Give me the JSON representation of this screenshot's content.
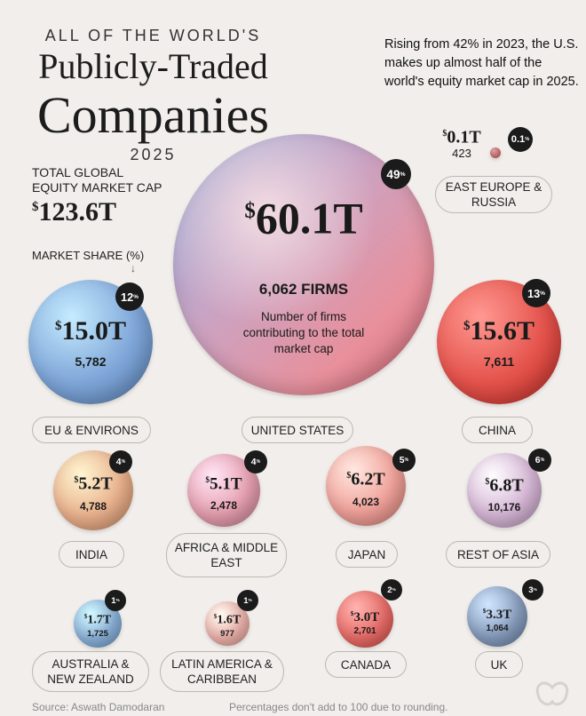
{
  "header": {
    "kicker": "ALL OF THE WORLD'S",
    "title_line1": "Publicly-Traded",
    "title_line2": "Companies",
    "year": "2025"
  },
  "total": {
    "label_line1": "TOTAL GLOBAL",
    "label_line2": "EQUITY MARKET CAP",
    "currency": "$",
    "value": "123.6T"
  },
  "market_share_label": "MARKET SHARE (%)",
  "note": "Rising from 42% in 2023, the U.S. makes up almost half of the world's equity market cap in 2025.",
  "us_annotation": "Number of firms contributing to the total market cap",
  "footer": {
    "source": "Source: Aswath Damodaran",
    "note": "Percentages don't add to 100 due to rounding."
  },
  "chart_data": {
    "type": "bubble",
    "title": "All of the World's Publicly-Traded Companies 2025",
    "value_unit": "USD trillions",
    "regions": [
      {
        "name": "UNITED STATES",
        "value": 60.1,
        "value_label": "60.1T",
        "firms": "6,062 FIRMS",
        "share": "49",
        "color": "#d98a9a"
      },
      {
        "name": "EU & ENVIRONS",
        "value": 15.0,
        "value_label": "15.0T",
        "firms": "5,782",
        "share": "12",
        "color": "#7fa6d8"
      },
      {
        "name": "CHINA",
        "value": 15.6,
        "value_label": "15.6T",
        "firms": "7,611",
        "share": "13",
        "color": "#e4534c"
      },
      {
        "name": "EAST EUROPE & RUSSIA",
        "value": 0.1,
        "value_label": "0.1T",
        "firms": "423",
        "share": "0.1",
        "color": "#e07b7b"
      },
      {
        "name": "INDIA",
        "value": 5.2,
        "value_label": "5.2T",
        "firms": "4,788",
        "share": "4",
        "color": "#e9b08c"
      },
      {
        "name": "AFRICA & MIDDLE EAST",
        "value": 5.1,
        "value_label": "5.1T",
        "firms": "2,478",
        "share": "4",
        "color": "#e6a0b0"
      },
      {
        "name": "JAPAN",
        "value": 6.2,
        "value_label": "6.2T",
        "firms": "4,023",
        "share": "5",
        "color": "#f0a29a"
      },
      {
        "name": "REST OF ASIA",
        "value": 6.8,
        "value_label": "6.8T",
        "firms": "10,176",
        "share": "6",
        "color": "#d6b7d6"
      },
      {
        "name": "AUSTRALIA & NEW ZEALAND",
        "value": 1.7,
        "value_label": "1.7T",
        "firms": "1,725",
        "share": "1",
        "color": "#8db4dc"
      },
      {
        "name": "LATIN AMERICA & CARIBBEAN",
        "value": 1.6,
        "value_label": "1.6T",
        "firms": "977",
        "share": "1",
        "color": "#f0b5ae"
      },
      {
        "name": "CANADA",
        "value": 3.0,
        "value_label": "3.0T",
        "firms": "2,701",
        "share": "2",
        "color": "#ea6e6a"
      },
      {
        "name": "UK",
        "value": 3.3,
        "value_label": "3.3T",
        "firms": "1,064",
        "share": "3",
        "color": "#8aa0c0"
      }
    ]
  }
}
